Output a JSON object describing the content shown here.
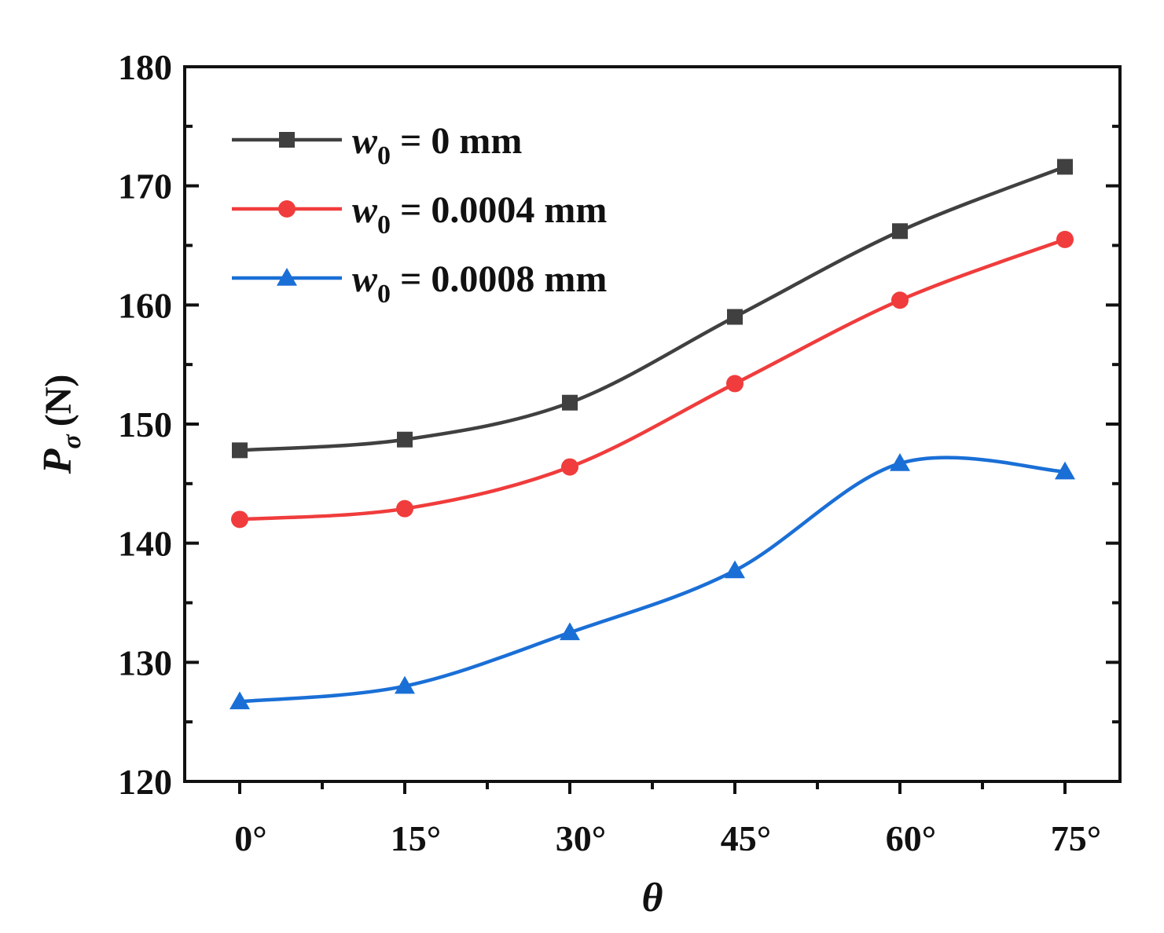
{
  "chart_data": {
    "type": "line",
    "title": "",
    "xlabel": "θ",
    "ylabel": "P",
    "ylabel_subscript": "σ",
    "ylabel_unit": "(N)",
    "categories": [
      "0°",
      "15°",
      "30°",
      "45°",
      "60°",
      "75°"
    ],
    "x": [
      0,
      15,
      30,
      45,
      60,
      75
    ],
    "ylim": [
      120,
      180
    ],
    "yticks": [
      120,
      130,
      140,
      150,
      160,
      170,
      180
    ],
    "ytick_labels": [
      "120",
      "130",
      "140",
      "150",
      "160",
      "170",
      "180"
    ],
    "legend_position": "top-left",
    "series": [
      {
        "name": "w0 = 0 mm",
        "legend": {
          "var": "w",
          "sub": "0",
          "rest": " = 0 mm"
        },
        "marker": "square",
        "color": "#404040",
        "values": [
          147.8,
          148.7,
          151.8,
          159.0,
          166.2,
          171.6
        ]
      },
      {
        "name": "w0 = 0.0004 mm",
        "legend": {
          "var": "w",
          "sub": "0",
          "rest": " = 0.0004 mm"
        },
        "marker": "circle",
        "color": "#f03c3c",
        "values": [
          142.0,
          142.9,
          146.4,
          153.4,
          160.4,
          165.5
        ]
      },
      {
        "name": "w0 = 0.0008 mm",
        "legend": {
          "var": "w",
          "sub": "0",
          "rest": " = 0.0008 mm"
        },
        "marker": "triangle",
        "color": "#1a6fd6",
        "values": [
          126.7,
          128.0,
          132.5,
          137.7,
          146.7,
          146.0
        ]
      }
    ]
  }
}
